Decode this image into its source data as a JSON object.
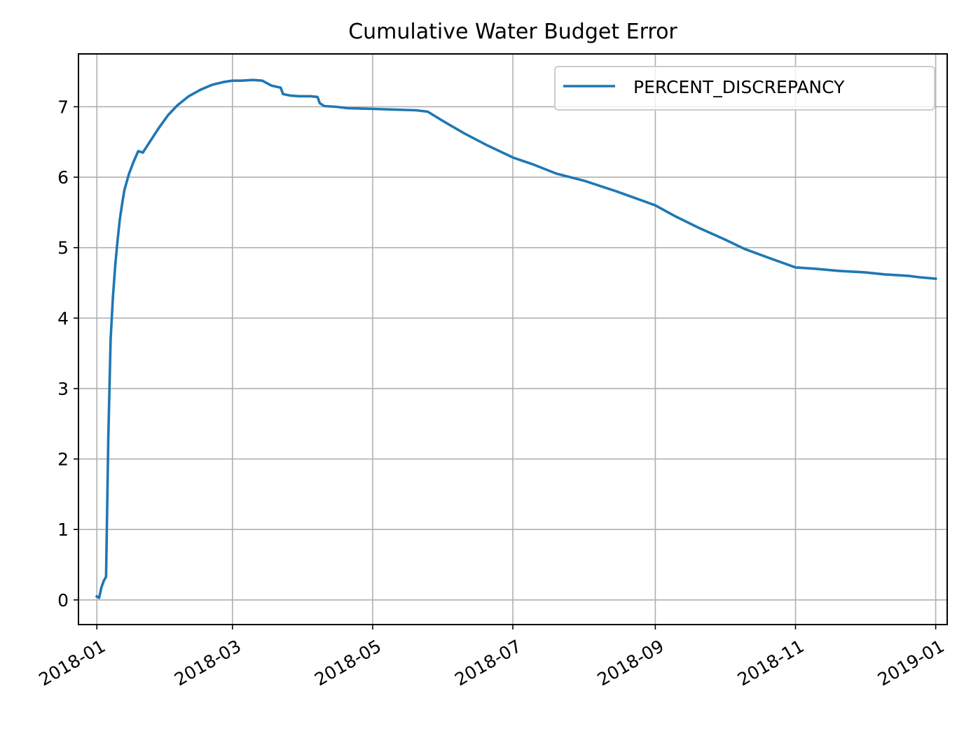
{
  "chart_data": {
    "type": "line",
    "title": "Cumulative Water Budget Error",
    "xlabel": "",
    "ylabel": "",
    "x_scale": "date",
    "xlim": [
      "2017-12-24",
      "2019-01-06"
    ],
    "ylim": [
      -0.35,
      7.75
    ],
    "x_ticks": [
      "2018-01",
      "2018-03",
      "2018-05",
      "2018-07",
      "2018-09",
      "2018-11",
      "2019-01"
    ],
    "y_ticks": [
      "0",
      "1",
      "2",
      "3",
      "4",
      "5",
      "6",
      "7"
    ],
    "grid": true,
    "legend_position": "top-right",
    "series": [
      {
        "name": "PERCENT_DISCREPANCY",
        "color": "#1f77b4",
        "x": [
          "2018-01-01",
          "2018-01-02",
          "2018-01-03",
          "2018-01-04",
          "2018-01-05",
          "2018-01-06",
          "2018-01-07",
          "2018-01-08",
          "2018-01-09",
          "2018-01-10",
          "2018-01-11",
          "2018-01-12",
          "2018-01-13",
          "2018-01-15",
          "2018-01-17",
          "2018-01-19",
          "2018-01-21",
          "2018-01-23",
          "2018-01-24",
          "2018-01-25",
          "2018-01-28",
          "2018-02-01",
          "2018-02-05",
          "2018-02-10",
          "2018-02-15",
          "2018-02-20",
          "2018-02-25",
          "2018-03-01",
          "2018-03-05",
          "2018-03-10",
          "2018-03-14",
          "2018-03-18",
          "2018-03-22",
          "2018-03-23",
          "2018-03-26",
          "2018-03-30",
          "2018-04-04",
          "2018-04-07",
          "2018-04-08",
          "2018-04-10",
          "2018-04-15",
          "2018-04-20",
          "2018-05-01",
          "2018-05-10",
          "2018-05-20",
          "2018-05-25",
          "2018-06-01",
          "2018-06-10",
          "2018-06-20",
          "2018-07-01",
          "2018-07-10",
          "2018-07-20",
          "2018-08-01",
          "2018-08-15",
          "2018-08-27",
          "2018-09-01",
          "2018-09-10",
          "2018-09-20",
          "2018-10-01",
          "2018-10-10",
          "2018-10-20",
          "2018-11-01",
          "2018-11-10",
          "2018-11-20",
          "2018-12-01",
          "2018-12-10",
          "2018-12-20",
          "2018-12-25",
          "2019-01-01"
        ],
        "values": [
          0.05,
          0.03,
          0.18,
          0.27,
          0.33,
          2.3,
          3.7,
          4.3,
          4.75,
          5.1,
          5.4,
          5.62,
          5.82,
          6.05,
          6.22,
          6.37,
          6.35,
          6.45,
          6.5,
          6.55,
          6.7,
          6.88,
          7.02,
          7.15,
          7.24,
          7.31,
          7.35,
          7.37,
          7.37,
          7.38,
          7.37,
          7.3,
          7.27,
          7.18,
          7.16,
          7.15,
          7.15,
          7.14,
          7.05,
          7.01,
          7.0,
          6.98,
          6.97,
          6.96,
          6.95,
          6.93,
          6.79,
          6.62,
          6.45,
          6.28,
          6.18,
          6.05,
          5.95,
          5.8,
          5.66,
          5.6,
          5.44,
          5.28,
          5.12,
          4.98,
          4.86,
          4.72,
          4.7,
          4.67,
          4.65,
          4.62,
          4.6,
          4.58,
          4.56
        ]
      }
    ]
  }
}
